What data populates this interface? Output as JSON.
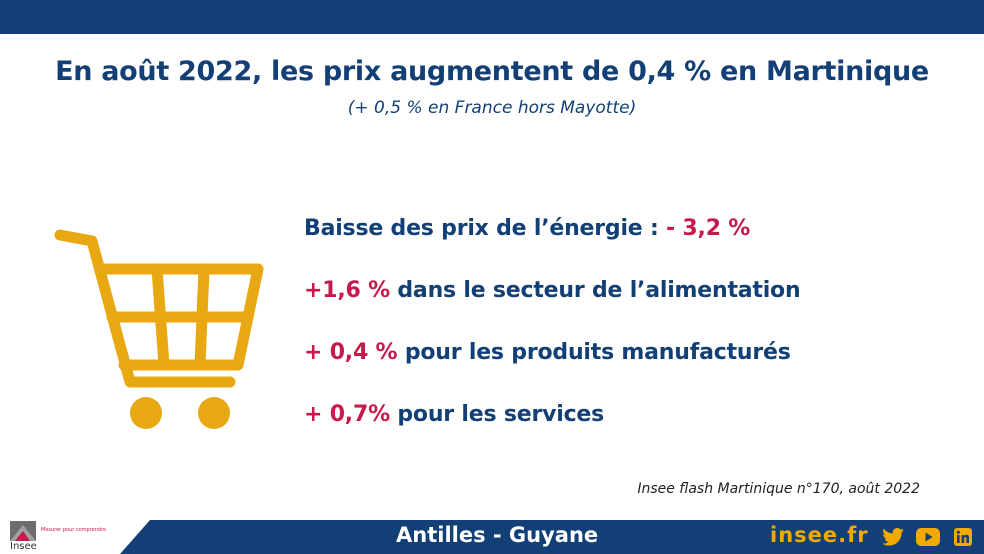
{
  "header": {
    "title": "En août 2022, les prix augmentent de 0,4 % en Martinique",
    "subtitle": "(+ 0,5 % en France hors Mayotte)"
  },
  "bullets": [
    {
      "text": "Baisse des prix de l’énergie : ",
      "value": "- 3,2 %"
    },
    {
      "value": "+1,6 %",
      "text": " dans le secteur de l’alimentation"
    },
    {
      "value": "+ 0,4 %",
      "text": " pour les produits manufacturés"
    },
    {
      "value": "+ 0,7%",
      "text": " pour les services"
    }
  ],
  "source": "Insee flash Martinique n°170, août 2022",
  "footer": {
    "region": "Antilles - Guyane",
    "site": "insee.fr",
    "logo_name": "Insee",
    "logo_tagline": "Mesurer pour comprendre"
  },
  "icons": [
    "shopping-cart-icon",
    "twitter-icon",
    "youtube-icon",
    "linkedin-icon"
  ],
  "colors": {
    "navy": "#123f75",
    "red": "#c8194b",
    "gold": "#f2a900",
    "cart": "#e8a812"
  }
}
